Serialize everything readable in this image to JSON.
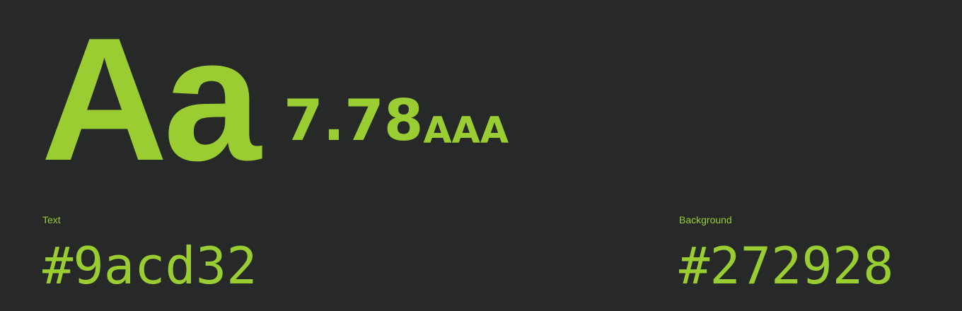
{
  "colors": {
    "text": "#9acd32",
    "background": "#272928"
  },
  "preview": {
    "sample": "Aa",
    "ratio": "7.78",
    "rating": "AAA"
  },
  "text_color": {
    "label": "Text",
    "hex": "#9acd32"
  },
  "background_color": {
    "label": "Background",
    "hex": "#272928"
  }
}
